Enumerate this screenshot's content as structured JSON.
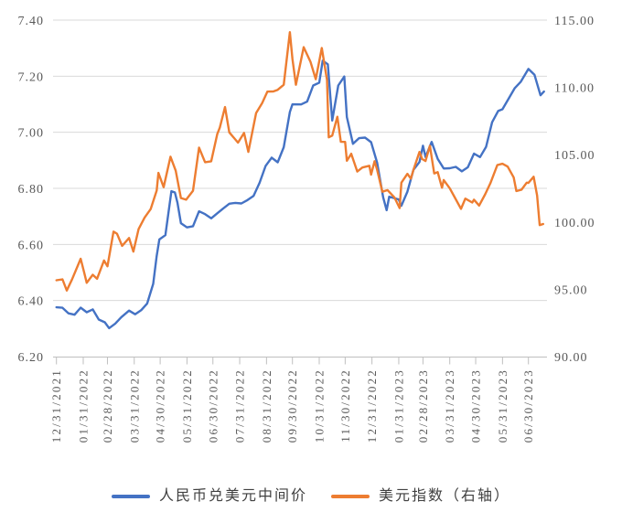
{
  "page": {
    "background": "#ffffff",
    "title": ""
  },
  "style": {
    "gridline_color": "#D9D9D9",
    "axis_line_color": "#BFBFBF",
    "axis_text_color": "#595959",
    "legend_text_color": "#404040",
    "cny_line_color": "#4472C4",
    "dxy_line_color": "#ED7D31"
  },
  "legend": {
    "items": [
      {
        "label": "人民币兑美元中间价",
        "color": "#4472C4"
      },
      {
        "label": "美元指数（右轴）",
        "color": "#ED7D31"
      }
    ]
  },
  "chart_data": {
    "type": "line",
    "title": "",
    "grid": "horizontal",
    "legend_position": "bottom",
    "x_tick_labels": [
      "12/31/2021",
      "01/31/2022",
      "02/28/2022",
      "03/31/2022",
      "04/30/2022",
      "05/31/2022",
      "06/30/2022",
      "07/31/2022",
      "08/31/2022",
      "09/30/2022",
      "10/31/2022",
      "11/30/2022",
      "12/31/2022",
      "01/31/2023",
      "02/28/2023",
      "03/31/2023",
      "04/30/2023",
      "05/31/2023",
      "06/30/2023"
    ],
    "y_left": {
      "min": 6.2,
      "max": 7.4,
      "tick_labels": [
        "7.40",
        "7.20",
        "7.00",
        "6.80",
        "6.60",
        "6.40",
        "6.20"
      ]
    },
    "y_right": {
      "min": 90.0,
      "max": 115.0,
      "tick_labels": [
        "115.00",
        "110.00",
        "105.00",
        "100.00",
        "95.00",
        "90.00"
      ]
    },
    "series": [
      {
        "name": "人民币兑美元中间价",
        "axis": "left",
        "color": "#4472C4",
        "points": [
          [
            "2021-12-31",
            6.3757
          ],
          [
            "2022-01-07",
            6.3742
          ],
          [
            "2022-01-14",
            6.3542
          ],
          [
            "2022-01-21",
            6.3492
          ],
          [
            "2022-01-28",
            6.3746
          ],
          [
            "2022-02-04",
            6.358
          ],
          [
            "2022-02-11",
            6.3681
          ],
          [
            "2022-02-18",
            6.3321
          ],
          [
            "2022-02-25",
            6.3222
          ],
          [
            "2022-03-02",
            6.3014
          ],
          [
            "2022-03-09",
            6.3178
          ],
          [
            "2022-03-16",
            6.3406
          ],
          [
            "2022-03-25",
            6.364
          ],
          [
            "2022-04-01",
            6.3509
          ],
          [
            "2022-04-08",
            6.3653
          ],
          [
            "2022-04-15",
            6.3896
          ],
          [
            "2022-04-22",
            6.4596
          ],
          [
            "2022-04-26",
            6.559
          ],
          [
            "2022-04-29",
            6.6177
          ],
          [
            "2022-05-06",
            6.6332
          ],
          [
            "2022-05-13",
            6.7898
          ],
          [
            "2022-05-17",
            6.7854
          ],
          [
            "2022-05-20",
            6.7487
          ],
          [
            "2022-05-24",
            6.6756
          ],
          [
            "2022-05-31",
            6.6607
          ],
          [
            "2022-06-07",
            6.6649
          ],
          [
            "2022-06-14",
            6.7182
          ],
          [
            "2022-06-21",
            6.708
          ],
          [
            "2022-06-28",
            6.693
          ],
          [
            "2022-07-05",
            6.7111
          ],
          [
            "2022-07-12",
            6.7287
          ],
          [
            "2022-07-19",
            6.7451
          ],
          [
            "2022-07-26",
            6.7483
          ],
          [
            "2022-08-02",
            6.7462
          ],
          [
            "2022-08-09",
            6.7584
          ],
          [
            "2022-08-16",
            6.773
          ],
          [
            "2022-08-23",
            6.8198
          ],
          [
            "2022-08-30",
            6.8802
          ],
          [
            "2022-09-06",
            6.9096
          ],
          [
            "2022-09-13",
            6.8928
          ],
          [
            "2022-09-20",
            6.9468
          ],
          [
            "2022-09-27",
            7.0722
          ],
          [
            "2022-09-30",
            7.0998
          ],
          [
            "2022-10-10",
            7.0992
          ],
          [
            "2022-10-17",
            7.1095
          ],
          [
            "2022-10-24",
            7.1668
          ],
          [
            "2022-10-31",
            7.1768
          ],
          [
            "2022-11-04",
            7.2555
          ],
          [
            "2022-11-10",
            7.2422
          ],
          [
            "2022-11-15",
            7.0421
          ],
          [
            "2022-11-22",
            7.1667
          ],
          [
            "2022-11-29",
            7.1989
          ],
          [
            "2022-12-02",
            7.0542
          ],
          [
            "2022-12-09",
            6.9588
          ],
          [
            "2022-12-16",
            6.9791
          ],
          [
            "2022-12-23",
            6.981
          ],
          [
            "2022-12-30",
            6.9646
          ],
          [
            "2023-01-06",
            6.8912
          ],
          [
            "2023-01-13",
            6.768
          ],
          [
            "2023-01-17",
            6.7222
          ],
          [
            "2023-01-20",
            6.7702
          ],
          [
            "2023-01-31",
            6.7604
          ],
          [
            "2023-02-03",
            6.7382
          ],
          [
            "2023-02-10",
            6.7884
          ],
          [
            "2023-02-17",
            6.8659
          ],
          [
            "2023-02-24",
            6.8942
          ],
          [
            "2023-02-28",
            6.9519
          ],
          [
            "2023-03-03",
            6.9117
          ],
          [
            "2023-03-10",
            6.9655
          ],
          [
            "2023-03-17",
            6.9052
          ],
          [
            "2023-03-24",
            6.8709
          ],
          [
            "2023-03-31",
            6.8717
          ],
          [
            "2023-04-07",
            6.8766
          ],
          [
            "2023-04-14",
            6.8606
          ],
          [
            "2023-04-21",
            6.8752
          ],
          [
            "2023-04-28",
            6.924
          ],
          [
            "2023-05-05",
            6.9114
          ],
          [
            "2023-05-12",
            6.9481
          ],
          [
            "2023-05-19",
            7.0356
          ],
          [
            "2023-05-26",
            7.076
          ],
          [
            "2023-05-31",
            7.0821
          ],
          [
            "2023-06-07",
            7.1196
          ],
          [
            "2023-06-14",
            7.1566
          ],
          [
            "2023-06-21",
            7.1795
          ],
          [
            "2023-06-30",
            7.2258
          ],
          [
            "2023-07-07",
            7.2054
          ],
          [
            "2023-07-14",
            7.1318
          ],
          [
            "2023-07-18",
            7.1453
          ]
        ]
      },
      {
        "name": "美元指数（右轴）",
        "axis": "right",
        "color": "#ED7D31",
        "points": [
          [
            "2021-12-31",
            95.67
          ],
          [
            "2022-01-07",
            95.74
          ],
          [
            "2022-01-12",
            94.91
          ],
          [
            "2022-01-18",
            95.73
          ],
          [
            "2022-01-28",
            97.27
          ],
          [
            "2022-02-01",
            96.28
          ],
          [
            "2022-02-04",
            95.48
          ],
          [
            "2022-02-11",
            96.08
          ],
          [
            "2022-02-16",
            95.78
          ],
          [
            "2022-02-24",
            97.14
          ],
          [
            "2022-02-28",
            96.71
          ],
          [
            "2022-03-07",
            99.29
          ],
          [
            "2022-03-11",
            99.13
          ],
          [
            "2022-03-17",
            98.23
          ],
          [
            "2022-03-25",
            98.81
          ],
          [
            "2022-03-30",
            97.8
          ],
          [
            "2022-04-05",
            99.47
          ],
          [
            "2022-04-12",
            100.33
          ],
          [
            "2022-04-19",
            100.96
          ],
          [
            "2022-04-26",
            102.34
          ],
          [
            "2022-04-28",
            103.65
          ],
          [
            "2022-05-04",
            102.59
          ],
          [
            "2022-05-12",
            104.85
          ],
          [
            "2022-05-18",
            103.81
          ],
          [
            "2022-05-24",
            101.78
          ],
          [
            "2022-05-30",
            101.66
          ],
          [
            "2022-06-07",
            102.32
          ],
          [
            "2022-06-14",
            105.52
          ],
          [
            "2022-06-21",
            104.44
          ],
          [
            "2022-06-28",
            104.51
          ],
          [
            "2022-07-05",
            106.53
          ],
          [
            "2022-07-08",
            107.01
          ],
          [
            "2022-07-14",
            108.54
          ],
          [
            "2022-07-19",
            106.66
          ],
          [
            "2022-07-29",
            105.9
          ],
          [
            "2022-08-05",
            106.62
          ],
          [
            "2022-08-10",
            105.21
          ],
          [
            "2022-08-19",
            108.1
          ],
          [
            "2022-08-26",
            108.84
          ],
          [
            "2022-09-01",
            109.69
          ],
          [
            "2022-09-08",
            109.7
          ],
          [
            "2022-09-13",
            109.82
          ],
          [
            "2022-09-20",
            110.2
          ],
          [
            "2022-09-27",
            114.1
          ],
          [
            "2022-09-30",
            112.12
          ],
          [
            "2022-10-04",
            110.2
          ],
          [
            "2022-10-13",
            112.99
          ],
          [
            "2022-10-21",
            111.89
          ],
          [
            "2022-10-27",
            110.61
          ],
          [
            "2022-11-03",
            112.93
          ],
          [
            "2022-11-09",
            110.56
          ],
          [
            "2022-11-11",
            106.29
          ],
          [
            "2022-11-15",
            106.42
          ],
          [
            "2022-11-21",
            107.82
          ],
          [
            "2022-11-25",
            105.96
          ],
          [
            "2022-11-30",
            105.95
          ],
          [
            "2022-12-02",
            104.55
          ],
          [
            "2022-12-07",
            105.07
          ],
          [
            "2022-12-14",
            103.75
          ],
          [
            "2022-12-20",
            104.05
          ],
          [
            "2022-12-28",
            104.18
          ],
          [
            "2022-12-30",
            103.52
          ],
          [
            "2023-01-03",
            104.52
          ],
          [
            "2023-01-06",
            103.88
          ],
          [
            "2023-01-12",
            102.25
          ],
          [
            "2023-01-18",
            102.37
          ],
          [
            "2023-01-26",
            101.83
          ],
          [
            "2023-02-01",
            101.03
          ],
          [
            "2023-02-03",
            102.92
          ],
          [
            "2023-02-10",
            103.58
          ],
          [
            "2023-02-14",
            103.22
          ],
          [
            "2023-02-17",
            103.88
          ],
          [
            "2023-02-24",
            105.21
          ],
          [
            "2023-02-27",
            104.68
          ],
          [
            "2023-03-03",
            104.53
          ],
          [
            "2023-03-08",
            105.66
          ],
          [
            "2023-03-13",
            103.61
          ],
          [
            "2023-03-17",
            103.71
          ],
          [
            "2023-03-22",
            102.55
          ],
          [
            "2023-03-24",
            103.12
          ],
          [
            "2023-03-31",
            102.51
          ],
          [
            "2023-04-05",
            101.92
          ],
          [
            "2023-04-13",
            100.98
          ],
          [
            "2023-04-18",
            101.74
          ],
          [
            "2023-04-26",
            101.45
          ],
          [
            "2023-04-28",
            101.66
          ],
          [
            "2023-05-04",
            101.22
          ],
          [
            "2023-05-11",
            102.06
          ],
          [
            "2023-05-17",
            102.88
          ],
          [
            "2023-05-25",
            104.23
          ],
          [
            "2023-05-31",
            104.33
          ],
          [
            "2023-06-06",
            104.12
          ],
          [
            "2023-06-13",
            103.31
          ],
          [
            "2023-06-16",
            102.3
          ],
          [
            "2023-06-22",
            102.4
          ],
          [
            "2023-06-28",
            102.92
          ],
          [
            "2023-06-30",
            102.91
          ],
          [
            "2023-07-06",
            103.36
          ],
          [
            "2023-07-10",
            101.96
          ],
          [
            "2023-07-13",
            99.77
          ],
          [
            "2023-07-17",
            99.85
          ]
        ]
      }
    ]
  }
}
